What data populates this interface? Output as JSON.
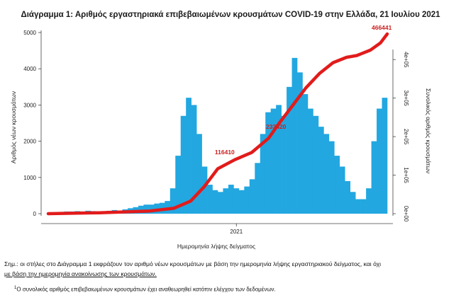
{
  "chart_data": {
    "type": "bar",
    "title": "Διάγραμμα 1: Αριθμός εργαστηριακά επιβεβαιωμένων κρουσμάτων COVID-19 στην Ελλάδα, 21 Ιουλίου 2021",
    "xlabel": "Ημερομηνία λήψης δείγματος",
    "ylabel": "Αριθμός νέων κρουσμάτων",
    "ylabel_right": "Συνολικός αριθμός κρουσμάτων",
    "x_tick_labels": [
      "2021"
    ],
    "y_ticks": [
      0,
      1000,
      2000,
      3000,
      4000,
      5000
    ],
    "y_tick_labels": [
      "0",
      "1000",
      "2000",
      "3000",
      "4000",
      "5000"
    ],
    "ylim": [
      0,
      5000
    ],
    "y_right_ticks": [
      0,
      100000,
      200000,
      300000,
      400000
    ],
    "y_right_tick_labels": [
      "0e+00",
      "1e+05",
      "2e+05",
      "3e+05",
      "4e+05"
    ],
    "ylim_right": [
      0,
      466441
    ],
    "x_anchor_2021": 0.555,
    "series": [
      {
        "type": "bar",
        "color": "#22a7e0",
        "weekly_values": [
          30,
          40,
          50,
          60,
          60,
          70,
          60,
          80,
          70,
          60,
          60,
          80,
          100,
          80,
          120,
          150,
          180,
          220,
          250,
          250,
          280,
          300,
          350,
          700,
          1600,
          2700,
          3200,
          3000,
          2200,
          1300,
          800,
          650,
          600,
          700,
          800,
          700,
          650,
          750,
          950,
          1400,
          2200,
          2800,
          2900,
          3000,
          2700,
          3500,
          4300,
          3900,
          3300,
          2900,
          2700,
          2400,
          2200,
          2000,
          1600,
          1300,
          900,
          600,
          400,
          400,
          700,
          2000,
          2900,
          3200
        ]
      },
      {
        "type": "line",
        "color": "#e21b1b",
        "key_points": [
          [
            0.0,
            0.0
          ],
          [
            0.15,
            0.005
          ],
          [
            0.3,
            0.015
          ],
          [
            0.37,
            0.03
          ],
          [
            0.42,
            0.07
          ],
          [
            0.46,
            0.15
          ],
          [
            0.5,
            0.25
          ],
          [
            0.55,
            0.3
          ],
          [
            0.6,
            0.34
          ],
          [
            0.65,
            0.42
          ],
          [
            0.68,
            0.5
          ],
          [
            0.72,
            0.6
          ],
          [
            0.76,
            0.7
          ],
          [
            0.8,
            0.78
          ],
          [
            0.84,
            0.84
          ],
          [
            0.88,
            0.87
          ],
          [
            0.91,
            0.88
          ],
          [
            0.95,
            0.91
          ],
          [
            0.98,
            0.95
          ],
          [
            1.0,
            1.0
          ]
        ]
      }
    ],
    "annotations": [
      {
        "text": "466441",
        "pos": "end-of-line"
      },
      {
        "text": "116410",
        "pos": "on-line-mid"
      },
      {
        "text": "233420",
        "pos": "on-line-upper"
      }
    ],
    "grid": false
  },
  "notes": {
    "main_line1": "Σημ.: οι στήλες στο Διάγραμμα 1 εκφράζουν τον αριθμό νέων κρουσμάτων με βάση την ημερομηνία λήψης εργαστηριακού δείγματος, και όχι",
    "main_line2": "με βάση την ημερομηνία ανακοίνωσης των κρουσμάτων.",
    "footnote_sup": "1",
    "footnote": "Ο συνολικός αριθμός επιβεβαιωμένων κρουσμάτων έχει αναθεωρηθεί κατόπιν ελέγχου των δεδομένων."
  }
}
